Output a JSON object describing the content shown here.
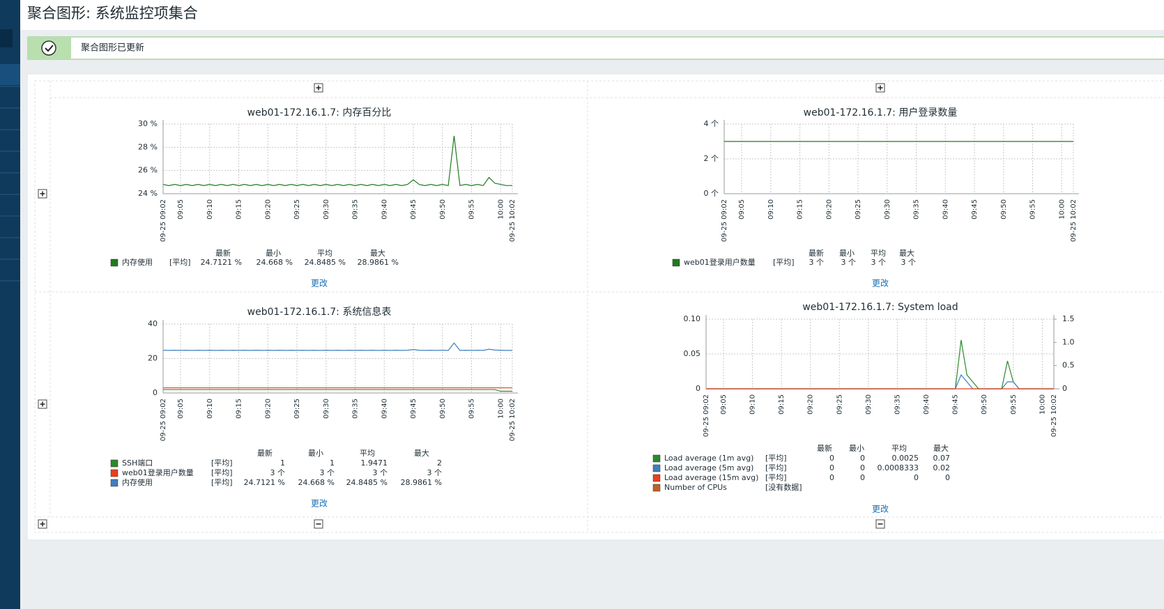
{
  "page": {
    "title": "聚合图形: 系统监控项集合",
    "notice": "聚合图形已更新"
  },
  "chart_data": [
    {
      "type": "line",
      "title": "web01-172.16.1.7: 内存百分比",
      "edit_label": "更改",
      "x": [
        "09-25 09:02",
        null,
        null,
        "09:05",
        null,
        null,
        null,
        null,
        "09:10",
        null,
        null,
        null,
        null,
        "09:15",
        null,
        null,
        null,
        null,
        "09:20",
        null,
        null,
        null,
        null,
        "09:25",
        null,
        null,
        null,
        null,
        "09:30",
        null,
        null,
        null,
        null,
        "09:35",
        null,
        null,
        null,
        null,
        "09:40",
        null,
        null,
        null,
        null,
        "09:45",
        null,
        null,
        null,
        null,
        "09:50",
        null,
        null,
        null,
        null,
        "09:55",
        null,
        null,
        null,
        null,
        "10:00",
        null,
        "09-25 10:02"
      ],
      "ylim": [
        24,
        30
      ],
      "yticks": [
        {
          "value": 24,
          "label": "24 %"
        },
        {
          "value": 26,
          "label": "26 %"
        },
        {
          "value": 28,
          "label": "28 %"
        },
        {
          "value": 30,
          "label": "30 %"
        }
      ],
      "grid": true,
      "stat_headers": [
        "最新",
        "最小",
        "平均",
        "最大"
      ],
      "series": [
        {
          "name": "内存使用",
          "color": "#1f7a1f",
          "func": "[平均]",
          "stats": [
            "24.7121 %",
            "24.668 %",
            "24.8485 %",
            "28.9861 %"
          ],
          "values": [
            24.8,
            24.7,
            24.8,
            24.7,
            24.8,
            24.7,
            24.8,
            24.7,
            24.8,
            24.7,
            24.8,
            24.7,
            24.8,
            24.7,
            24.8,
            24.7,
            24.8,
            24.7,
            24.8,
            24.7,
            24.8,
            24.7,
            24.8,
            24.7,
            24.8,
            24.7,
            24.8,
            24.7,
            24.8,
            24.7,
            24.8,
            24.7,
            24.8,
            24.7,
            24.8,
            24.7,
            24.8,
            24.7,
            24.8,
            24.7,
            24.8,
            24.7,
            24.8,
            25.2,
            24.8,
            24.7,
            24.8,
            24.7,
            24.8,
            24.7,
            28.98,
            24.7,
            24.8,
            24.7,
            24.8,
            24.7,
            25.4,
            24.9,
            24.8,
            24.7,
            24.71
          ]
        }
      ]
    },
    {
      "type": "line",
      "title": "web01-172.16.1.7: 用户登录数量",
      "edit_label": "更改",
      "x": [
        "09-25 09:02",
        null,
        null,
        "09:05",
        null,
        null,
        null,
        null,
        "09:10",
        null,
        null,
        null,
        null,
        "09:15",
        null,
        null,
        null,
        null,
        "09:20",
        null,
        null,
        null,
        null,
        "09:25",
        null,
        null,
        null,
        null,
        "09:30",
        null,
        null,
        null,
        null,
        "09:35",
        null,
        null,
        null,
        null,
        "09:40",
        null,
        null,
        null,
        null,
        "09:45",
        null,
        null,
        null,
        null,
        "09:50",
        null,
        null,
        null,
        null,
        "09:55",
        null,
        null,
        null,
        null,
        "10:00",
        null,
        "09-25 10:02"
      ],
      "ylim": [
        0,
        4
      ],
      "yticks": [
        {
          "value": 0,
          "label": "0 个"
        },
        {
          "value": 2,
          "label": "2 个"
        },
        {
          "value": 4,
          "label": "4 个"
        }
      ],
      "grid": true,
      "stat_headers": [
        "最新",
        "最小",
        "平均",
        "最大"
      ],
      "series": [
        {
          "name": "web01登录用户数量",
          "color": "#1f7a1f",
          "func": "[平均]",
          "stats": [
            "3 个",
            "3 个",
            "3 个",
            "3 个"
          ],
          "values": [
            3,
            3,
            3,
            3,
            3,
            3,
            3,
            3,
            3,
            3,
            3,
            3,
            3,
            3,
            3,
            3,
            3,
            3,
            3,
            3,
            3,
            3,
            3,
            3,
            3,
            3,
            3,
            3,
            3,
            3,
            3,
            3,
            3,
            3,
            3,
            3,
            3,
            3,
            3,
            3,
            3,
            3,
            3,
            3,
            3,
            3,
            3,
            3,
            3,
            3,
            3,
            3,
            3,
            3,
            3,
            3,
            3,
            3,
            3,
            3,
            3
          ]
        }
      ]
    },
    {
      "type": "line",
      "title": "web01-172.16.1.7: 系统信息表",
      "edit_label": "更改",
      "x": [
        "09-25 09:02",
        null,
        null,
        "09:05",
        null,
        null,
        null,
        null,
        "09:10",
        null,
        null,
        null,
        null,
        "09:15",
        null,
        null,
        null,
        null,
        "09:20",
        null,
        null,
        null,
        null,
        "09:25",
        null,
        null,
        null,
        null,
        "09:30",
        null,
        null,
        null,
        null,
        "09:35",
        null,
        null,
        null,
        null,
        "09:40",
        null,
        null,
        null,
        null,
        "09:45",
        null,
        null,
        null,
        null,
        "09:50",
        null,
        null,
        null,
        null,
        "09:55",
        null,
        null,
        null,
        null,
        "10:00",
        null,
        "09-25 10:02"
      ],
      "ylim": [
        0,
        40
      ],
      "yticks": [
        0,
        20,
        40
      ],
      "grid": true,
      "stat_headers": [
        "最新",
        "最小",
        "平均",
        "最大"
      ],
      "series": [
        {
          "name": "SSH端口",
          "color": "#2a8a2a",
          "func": "[平均]",
          "stats": [
            "1",
            "1",
            "1.9471",
            "2"
          ],
          "values": [
            2,
            2,
            2,
            2,
            2,
            2,
            2,
            2,
            2,
            2,
            2,
            2,
            2,
            2,
            2,
            2,
            2,
            2,
            2,
            2,
            2,
            2,
            2,
            2,
            2,
            2,
            2,
            2,
            2,
            2,
            2,
            2,
            2,
            2,
            2,
            2,
            2,
            2,
            2,
            2,
            2,
            2,
            2,
            2,
            2,
            2,
            2,
            2,
            2,
            2,
            2,
            2,
            2,
            2,
            2,
            2,
            2,
            2,
            1,
            1,
            1
          ]
        },
        {
          "name": "web01登录用户数量",
          "color": "#e8401c",
          "func": "[平均]",
          "stats": [
            "3 个",
            "3 个",
            "3 个",
            "3 个"
          ],
          "values": [
            3,
            3,
            3,
            3,
            3,
            3,
            3,
            3,
            3,
            3,
            3,
            3,
            3,
            3,
            3,
            3,
            3,
            3,
            3,
            3,
            3,
            3,
            3,
            3,
            3,
            3,
            3,
            3,
            3,
            3,
            3,
            3,
            3,
            3,
            3,
            3,
            3,
            3,
            3,
            3,
            3,
            3,
            3,
            3,
            3,
            3,
            3,
            3,
            3,
            3,
            3,
            3,
            3,
            3,
            3,
            3,
            3,
            3,
            3,
            3,
            3
          ]
        },
        {
          "name": "内存使用",
          "color": "#3e7fbf",
          "func": "[平均]",
          "stats": [
            "24.7121 %",
            "24.668 %",
            "24.8485 %",
            "28.9861 %"
          ],
          "values": [
            24.8,
            24.7,
            24.8,
            24.7,
            24.8,
            24.7,
            24.8,
            24.7,
            24.8,
            24.7,
            24.8,
            24.7,
            24.8,
            24.7,
            24.8,
            24.7,
            24.8,
            24.7,
            24.8,
            24.7,
            24.8,
            24.7,
            24.8,
            24.7,
            24.8,
            24.7,
            24.8,
            24.7,
            24.8,
            24.7,
            24.8,
            24.7,
            24.8,
            24.7,
            24.8,
            24.7,
            24.8,
            24.7,
            24.8,
            24.7,
            24.8,
            24.7,
            24.8,
            25.2,
            24.8,
            24.7,
            24.8,
            24.7,
            24.8,
            24.7,
            28.98,
            24.7,
            24.8,
            24.7,
            24.8,
            24.7,
            25.4,
            24.9,
            24.8,
            24.7,
            24.71
          ]
        }
      ]
    },
    {
      "type": "line",
      "title": "web01-172.16.1.7: System load",
      "edit_label": "更改",
      "x": [
        "09-25 09:02",
        null,
        null,
        "09:05",
        null,
        null,
        null,
        null,
        "09:10",
        null,
        null,
        null,
        null,
        "09:15",
        null,
        null,
        null,
        null,
        "09:20",
        null,
        null,
        null,
        null,
        "09:25",
        null,
        null,
        null,
        null,
        "09:30",
        null,
        null,
        null,
        null,
        "09:35",
        null,
        null,
        null,
        null,
        "09:40",
        null,
        null,
        null,
        null,
        "09:45",
        null,
        null,
        null,
        null,
        "09:50",
        null,
        null,
        null,
        null,
        "09:55",
        null,
        null,
        null,
        null,
        "10:00",
        null,
        "09-25 10:02"
      ],
      "ylim": [
        0,
        0.1
      ],
      "yticks": [
        0,
        0.05,
        {
          "value": 0.1,
          "label": "0.10"
        }
      ],
      "y2lim": [
        0,
        1.5
      ],
      "y2ticks": [
        0,
        0.5,
        {
          "value": 1,
          "label": "1.0"
        },
        1.5
      ],
      "grid": true,
      "stat_headers": [
        "最新",
        "最小",
        "平均",
        "最大"
      ],
      "series": [
        {
          "name": "Load average (1m avg)",
          "color": "#2a8a2a",
          "func": "[平均]",
          "stats": [
            "0",
            "0",
            "0.0025",
            "0.07"
          ],
          "values": [
            0,
            0,
            0,
            0,
            0,
            0,
            0,
            0,
            0,
            0,
            0,
            0,
            0,
            0,
            0,
            0,
            0,
            0,
            0,
            0,
            0,
            0,
            0,
            0,
            0,
            0,
            0,
            0,
            0,
            0,
            0,
            0,
            0,
            0,
            0,
            0,
            0,
            0,
            0,
            0,
            0,
            0,
            0,
            0,
            0.07,
            0.02,
            0.01,
            0,
            0,
            0,
            0,
            0,
            0.04,
            0.01,
            0,
            0,
            0,
            0,
            0,
            0,
            0
          ]
        },
        {
          "name": "Load average (5m avg)",
          "color": "#3e7fbf",
          "func": "[平均]",
          "stats": [
            "0",
            "0",
            "0.0008333",
            "0.02"
          ],
          "values": [
            0,
            0,
            0,
            0,
            0,
            0,
            0,
            0,
            0,
            0,
            0,
            0,
            0,
            0,
            0,
            0,
            0,
            0,
            0,
            0,
            0,
            0,
            0,
            0,
            0,
            0,
            0,
            0,
            0,
            0,
            0,
            0,
            0,
            0,
            0,
            0,
            0,
            0,
            0,
            0,
            0,
            0,
            0,
            0,
            0.02,
            0.01,
            0,
            0,
            0,
            0,
            0,
            0,
            0.01,
            0.01,
            0,
            0,
            0,
            0,
            0,
            0,
            0
          ]
        },
        {
          "name": "Load average (15m avg)",
          "color": "#e8401c",
          "func": "[平均]",
          "stats": [
            "0",
            "0",
            "0",
            "0"
          ],
          "values": [
            0,
            0,
            0,
            0,
            0,
            0,
            0,
            0,
            0,
            0,
            0,
            0,
            0,
            0,
            0,
            0,
            0,
            0,
            0,
            0,
            0,
            0,
            0,
            0,
            0,
            0,
            0,
            0,
            0,
            0,
            0,
            0,
            0,
            0,
            0,
            0,
            0,
            0,
            0,
            0,
            0,
            0,
            0,
            0,
            0,
            0,
            0,
            0,
            0,
            0,
            0,
            0,
            0,
            0,
            0,
            0,
            0,
            0,
            0,
            0,
            0
          ]
        },
        {
          "name": "Number of CPUs",
          "color": "#c0602a",
          "func": "[没有数据]",
          "axis": "y2",
          "values": [
            null,
            null,
            null,
            null,
            null,
            null,
            null,
            null,
            null,
            null,
            null,
            null,
            null,
            null,
            null,
            null,
            null,
            null,
            null,
            null,
            null,
            null,
            null,
            null,
            null,
            null,
            null,
            null,
            null,
            null,
            null,
            null,
            null,
            null,
            null,
            null,
            null,
            null,
            null,
            null,
            null,
            null,
            null,
            null,
            null,
            null,
            null,
            null,
            null,
            null,
            null,
            null,
            null,
            null,
            null,
            null,
            null,
            null,
            null,
            null,
            null
          ]
        }
      ]
    }
  ]
}
